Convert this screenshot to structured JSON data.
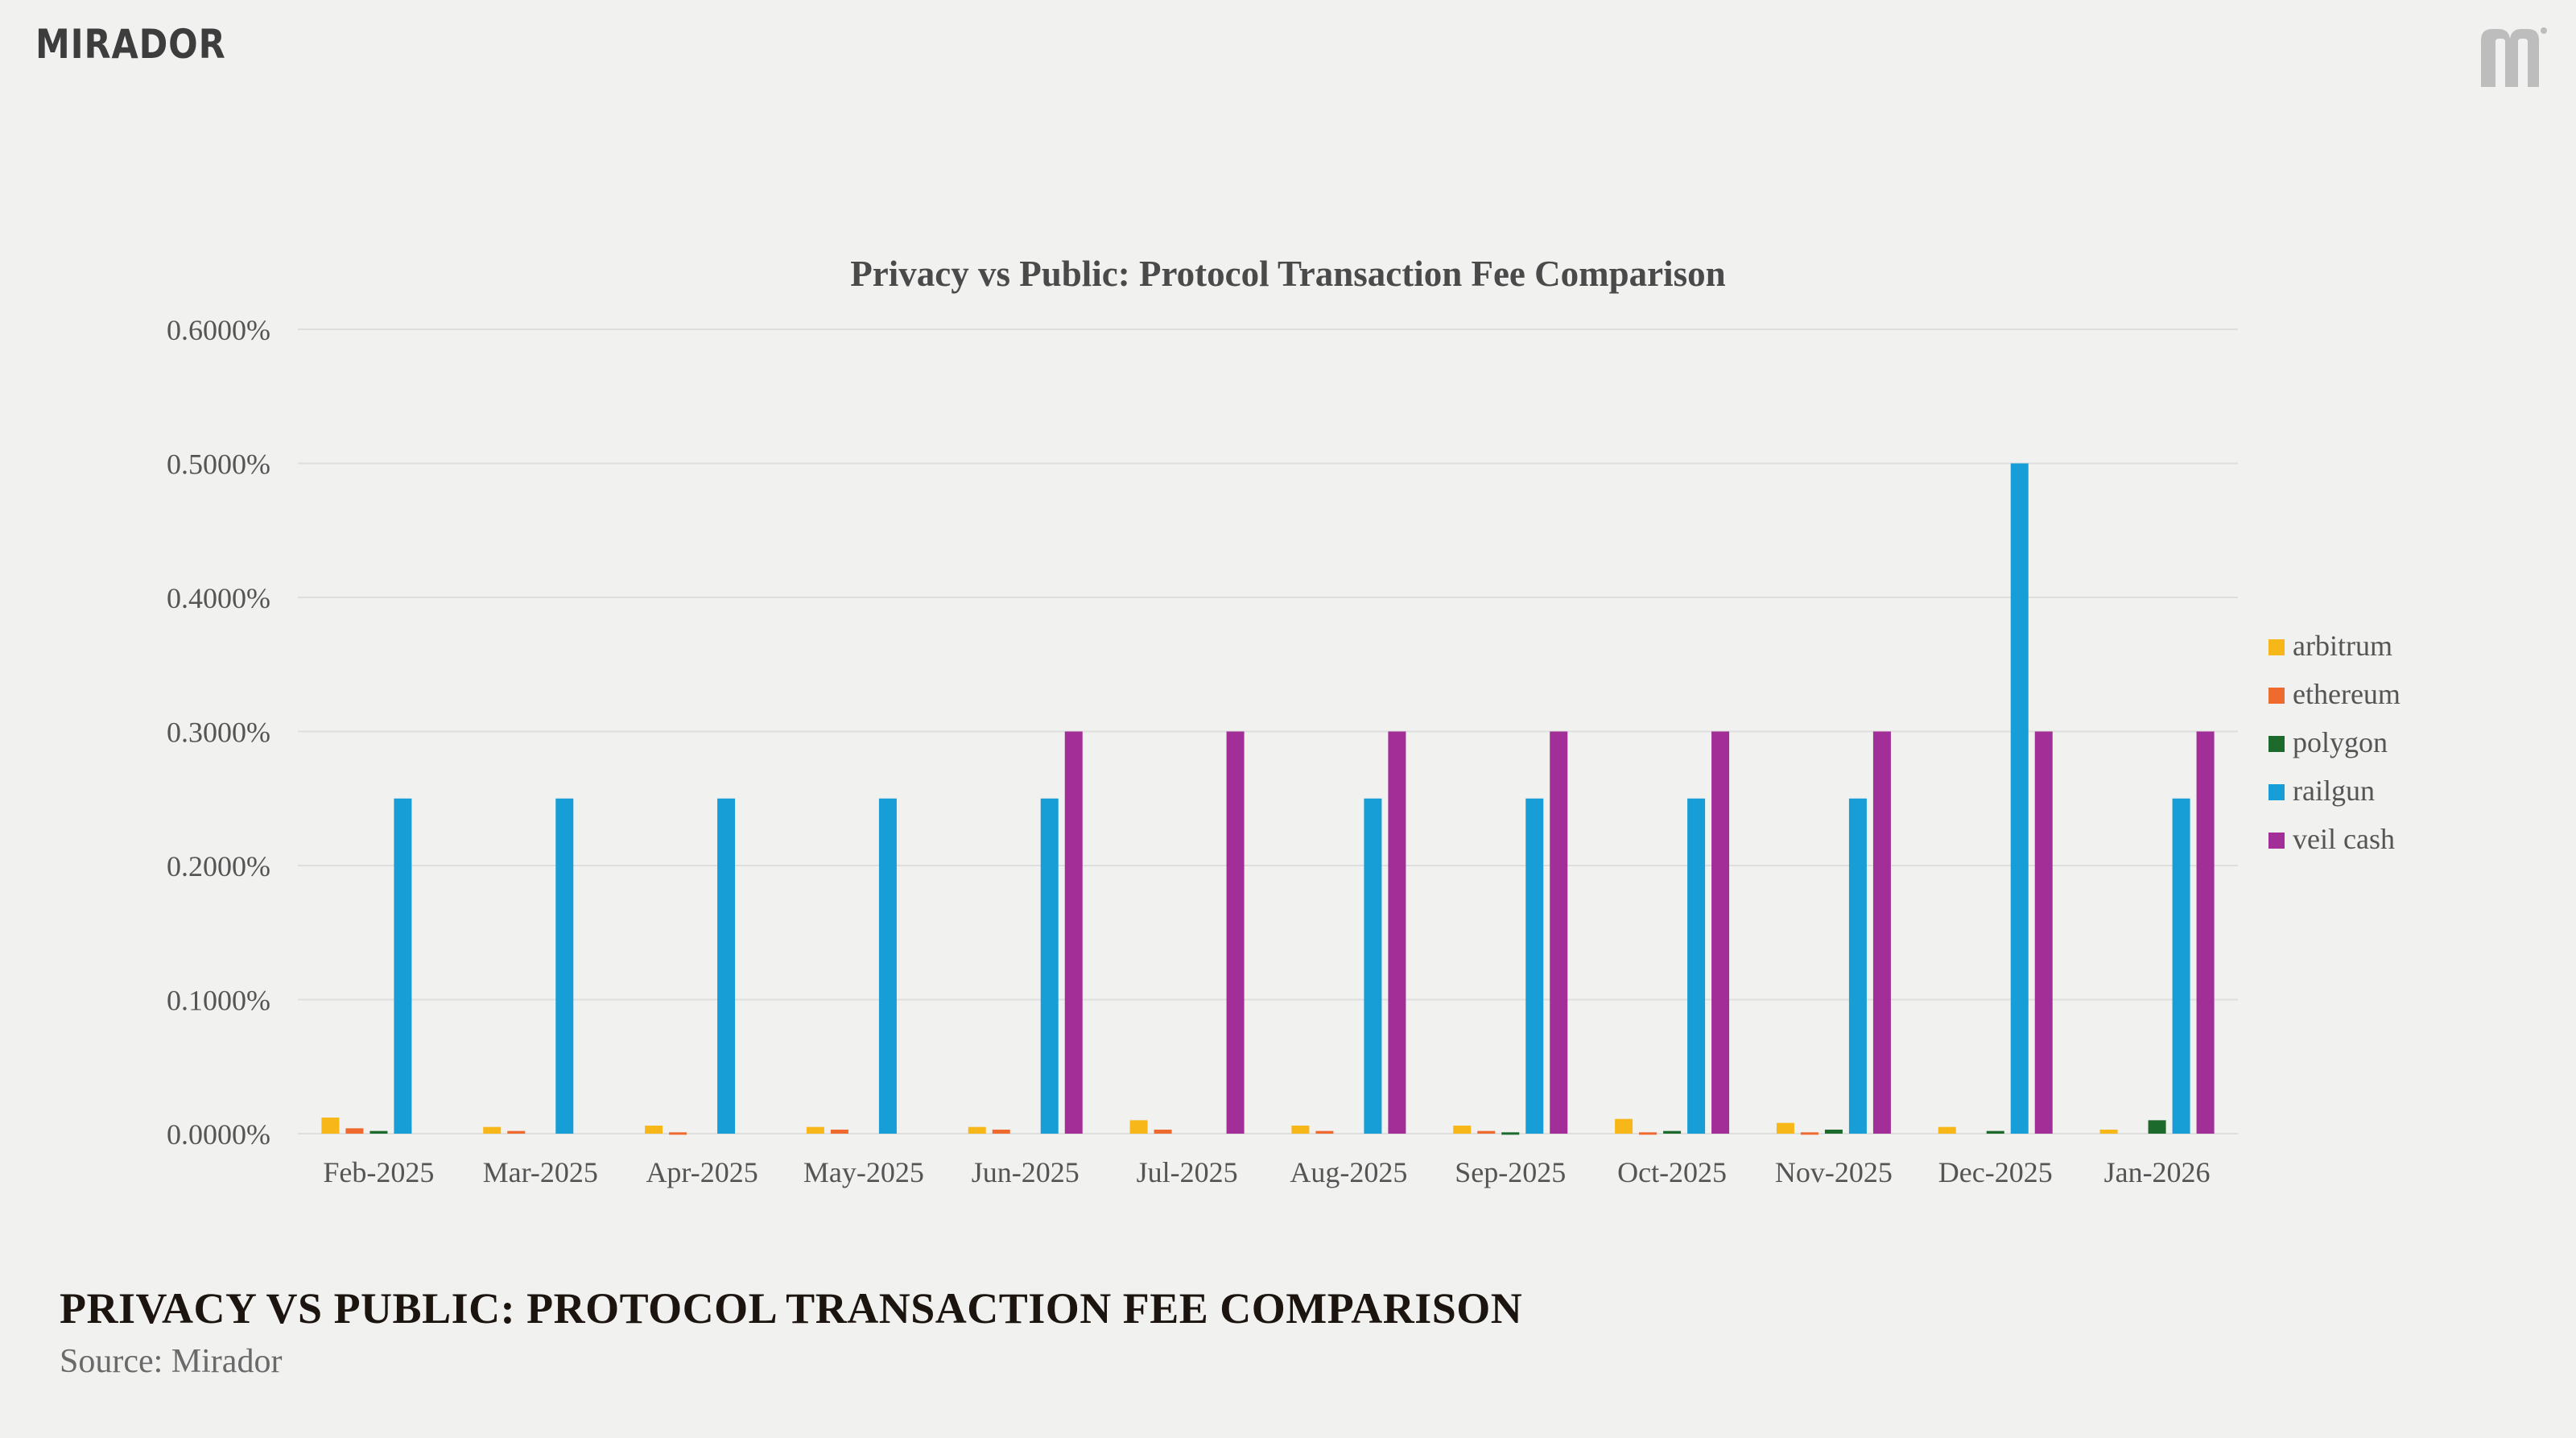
{
  "brand": {
    "logo_text": "MIRADOR"
  },
  "footer": {
    "title": "PRIVACY VS PUBLIC: PROTOCOL TRANSACTION FEE COMPARISON",
    "source": "Source: Mirador"
  },
  "colors": {
    "arbitrum": "#f7b718",
    "ethereum": "#ee6a2e",
    "polygon": "#1c6a2c",
    "railgun": "#189ed6",
    "veil cash": "#a22e97",
    "grid": "#dedede",
    "axis_text": "#555555",
    "title_text": "#4a4a4a"
  },
  "chart_data": {
    "type": "bar",
    "title": "Privacy vs Public: Protocol Transaction Fee Comparison",
    "xlabel": "",
    "ylabel": "",
    "ylim": [
      0,
      0.006
    ],
    "yticks": [
      "0.0000%",
      "0.1000%",
      "0.2000%",
      "0.3000%",
      "0.4000%",
      "0.5000%",
      "0.6000%"
    ],
    "grid": true,
    "legend_position": "right",
    "categories": [
      "Feb-2025",
      "Mar-2025",
      "Apr-2025",
      "May-2025",
      "Jun-2025",
      "Jul-2025",
      "Aug-2025",
      "Sep-2025",
      "Oct-2025",
      "Nov-2025",
      "Dec-2025",
      "Jan-2026"
    ],
    "series": [
      {
        "name": "arbitrum",
        "values": [
          0.00012,
          5e-05,
          6e-05,
          5e-05,
          5e-05,
          0.0001,
          6e-05,
          6e-05,
          0.00011,
          8e-05,
          5e-05,
          3e-05
        ]
      },
      {
        "name": "ethereum",
        "values": [
          4e-05,
          2e-05,
          1e-05,
          3e-05,
          3e-05,
          3e-05,
          2e-05,
          2e-05,
          1e-05,
          1e-05,
          0.0,
          0.0
        ]
      },
      {
        "name": "polygon",
        "values": [
          2e-05,
          0.0,
          0.0,
          0.0,
          0.0,
          0.0,
          0.0,
          1e-05,
          2e-05,
          3e-05,
          2e-05,
          0.0001
        ]
      },
      {
        "name": "railgun",
        "values": [
          0.0025,
          0.0025,
          0.0025,
          0.0025,
          0.0025,
          0.0,
          0.0025,
          0.0025,
          0.0025,
          0.0025,
          0.005,
          0.0025
        ]
      },
      {
        "name": "veil cash",
        "values": [
          0.0,
          0.0,
          0.0,
          0.0,
          0.003,
          0.003,
          0.003,
          0.003,
          0.003,
          0.003,
          0.003,
          0.003
        ]
      }
    ]
  }
}
